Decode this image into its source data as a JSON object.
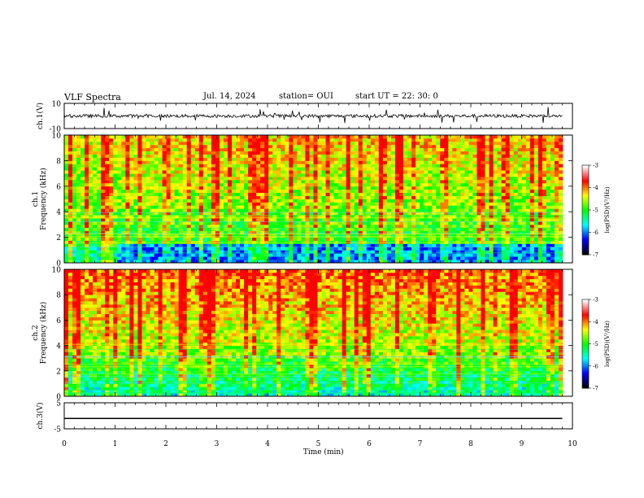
{
  "header": {
    "title": "VLF Spectra",
    "date": "Jul. 14, 2024",
    "station": "station= OUI",
    "start": "start UT =  22: 30: 0"
  },
  "chart_data": [
    {
      "type": "line",
      "title": "",
      "ylabel": "ch.1(V)",
      "ylim": [
        -10,
        10
      ],
      "y_ticks": [
        "10",
        "-10"
      ],
      "xlim": [
        0,
        10
      ],
      "description_series": "noisy waveform near 0 V",
      "color": "#000000"
    },
    {
      "type": "heatmap",
      "ylabel_line1": "ch.1",
      "ylabel_line2": "Frequency  (kHz)",
      "ylim": [
        0,
        10
      ],
      "y_ticks": [
        "0",
        "2",
        "4",
        "6",
        "8",
        "10"
      ],
      "xlim": [
        0,
        9.8
      ],
      "colorbar": {
        "label": "log(PSD)(V²/Hz)",
        "range": [
          -7,
          -3
        ],
        "ticks": [
          "-3",
          "-4",
          "-5",
          "-6",
          "-7"
        ],
        "colors": [
          "#000000",
          "#0000ff",
          "#00ffff",
          "#00ff00",
          "#ffff00",
          "#ff0000",
          "#ffffff"
        ]
      }
    },
    {
      "type": "heatmap",
      "ylabel_line1": "ch.2",
      "ylabel_line2": "Frequency  (kHz)",
      "ylim": [
        0,
        10
      ],
      "y_ticks": [
        "0",
        "2",
        "4",
        "6",
        "8",
        "10"
      ],
      "xlim": [
        0,
        9.8
      ],
      "colorbar": {
        "label": "log(PSD)(V²/Hz)",
        "range": [
          -7,
          -3
        ],
        "ticks": [
          "-3",
          "-4",
          "-5",
          "-6",
          "-7"
        ],
        "colors": [
          "#000000",
          "#0000ff",
          "#00ffff",
          "#00ff00",
          "#ffff00",
          "#ff0000",
          "#ffffff"
        ]
      }
    },
    {
      "type": "line",
      "ylabel": "ch.3(V)",
      "ylim": [
        -5,
        5
      ],
      "y_ticks": [
        "5",
        "-5"
      ],
      "x": [
        0,
        9.8
      ],
      "y": [
        -1,
        -1
      ],
      "color": "#000000"
    }
  ],
  "xaxis": {
    "label": "Time  (min)",
    "ticks": [
      "0",
      "1",
      "2",
      "3",
      "4",
      "5",
      "6",
      "7",
      "8",
      "9",
      "10"
    ],
    "range": [
      0,
      10
    ]
  }
}
